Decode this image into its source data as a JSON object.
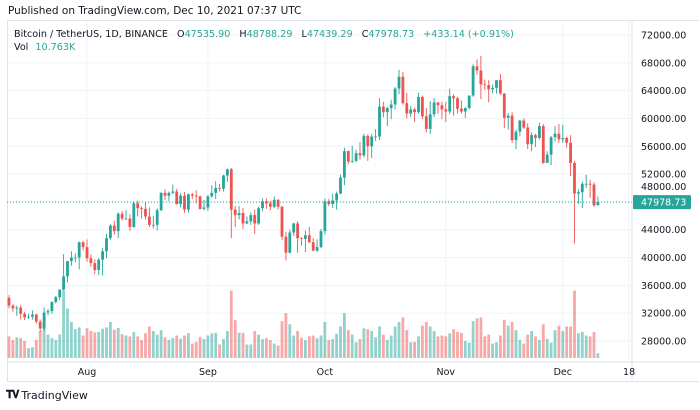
{
  "published": "Published on TradingView.com, Dec 10, 2021 07:37 UTC",
  "legend": {
    "symbol": "Bitcoin / TetherUS, 1D, BINANCE",
    "o_label": "O",
    "o": "47535.90",
    "h_label": "H",
    "h": "48788.29",
    "l_label": "L",
    "l": "47439.29",
    "c_label": "C",
    "c": "47978.73",
    "change": "+433.14 (+0.91%)",
    "vol_label": "Vol",
    "vol": "10.763K"
  },
  "brand": "TradingView",
  "colors": {
    "up": "#26a69a",
    "down": "#ef5350",
    "grid": "#f0f3fa",
    "border": "#e0e3eb",
    "text": "#131722"
  },
  "chart_data": {
    "type": "candlestick",
    "symbol": "Bitcoin / TetherUS",
    "interval": "1D",
    "start_date": "2021-07-12",
    "end_date": "2021-12-10",
    "last_price": "47978.73",
    "ylim": [
      26000,
      74000
    ],
    "y_ticks": [
      "72000.00",
      "68000.00",
      "64000.00",
      "60000.00",
      "56000.00",
      "52000.00",
      "48000.00",
      "44000.00",
      "40000.00",
      "36000.00",
      "32000.00",
      "28000.00"
    ],
    "x_ticks": [
      {
        "label": "Aug",
        "date": "2021-08-01"
      },
      {
        "label": "Sep",
        "date": "2021-09-01"
      },
      {
        "label": "Oct",
        "date": "2021-10-01"
      },
      {
        "label": "Nov",
        "date": "2021-11-01"
      },
      {
        "label": "Dec",
        "date": "2021-12-01"
      },
      {
        "label": "18",
        "date": "2021-12-18"
      }
    ],
    "grid": true,
    "ohlc": [
      [
        34200,
        34600,
        32700,
        33100
      ],
      [
        33100,
        33300,
        32200,
        32700
      ],
      [
        32700,
        33100,
        31600,
        32800
      ],
      [
        32800,
        33200,
        31100,
        31900
      ],
      [
        31900,
        32200,
        31000,
        31400
      ],
      [
        31400,
        31900,
        31200,
        31500
      ],
      [
        31500,
        32400,
        31100,
        31800
      ],
      [
        31800,
        31900,
        30500,
        30800
      ],
      [
        30800,
        31100,
        29300,
        29800
      ],
      [
        29800,
        32800,
        29500,
        32100
      ],
      [
        32100,
        32600,
        31700,
        32300
      ],
      [
        32300,
        33700,
        31900,
        33600
      ],
      [
        33600,
        34500,
        33400,
        34300
      ],
      [
        34300,
        35400,
        33900,
        35400
      ],
      [
        35400,
        40500,
        35300,
        37300
      ],
      [
        37300,
        39500,
        36400,
        39500
      ],
      [
        39500,
        40900,
        38800,
        40000
      ],
      [
        40000,
        40600,
        39300,
        40000
      ],
      [
        40000,
        42300,
        38300,
        42200
      ],
      [
        42200,
        42400,
        41000,
        41500
      ],
      [
        41500,
        42600,
        39400,
        39900
      ],
      [
        39900,
        40500,
        38700,
        39200
      ],
      [
        39200,
        39800,
        37600,
        38200
      ],
      [
        38200,
        39900,
        37500,
        39700
      ],
      [
        39700,
        41400,
        37400,
        40900
      ],
      [
        40900,
        43400,
        39900,
        42800
      ],
      [
        42800,
        44800,
        42500,
        44600
      ],
      [
        44600,
        45300,
        43300,
        43800
      ],
      [
        43800,
        46500,
        42800,
        46300
      ],
      [
        46300,
        46700,
        45300,
        45600
      ],
      [
        45600,
        46800,
        45400,
        45600
      ],
      [
        45600,
        46200,
        43800,
        44400
      ],
      [
        44400,
        48100,
        44300,
        47800
      ],
      [
        47800,
        48200,
        45900,
        47100
      ],
      [
        47100,
        47400,
        45600,
        47000
      ],
      [
        47000,
        48000,
        45500,
        45900
      ],
      [
        45900,
        47200,
        44400,
        44700
      ],
      [
        44700,
        46000,
        44200,
        44700
      ],
      [
        44700,
        47100,
        43900,
        46800
      ],
      [
        46800,
        49400,
        46700,
        49300
      ],
      [
        49300,
        49800,
        48300,
        48900
      ],
      [
        48900,
        49500,
        48100,
        49300
      ],
      [
        49300,
        50500,
        49100,
        49500
      ],
      [
        49500,
        49900,
        47600,
        47700
      ],
      [
        47700,
        49300,
        47200,
        48900
      ],
      [
        48900,
        49400,
        46400,
        46900
      ],
      [
        46900,
        49200,
        46500,
        49100
      ],
      [
        49100,
        49300,
        48400,
        48900
      ],
      [
        48900,
        49700,
        47800,
        48800
      ],
      [
        48800,
        48900,
        46900,
        47000
      ],
      [
        47000,
        48300,
        46800,
        47200
      ],
      [
        47200,
        49000,
        46700,
        48800
      ],
      [
        48800,
        50400,
        48600,
        49300
      ],
      [
        49300,
        51000,
        48400,
        50000
      ],
      [
        50000,
        50600,
        49500,
        49900
      ],
      [
        49900,
        51900,
        49500,
        51800
      ],
      [
        51800,
        52800,
        50900,
        52700
      ],
      [
        52700,
        52900,
        42800,
        46900
      ],
      [
        46900,
        47400,
        44400,
        46100
      ],
      [
        46100,
        47400,
        45500,
        46400
      ],
      [
        46400,
        47100,
        44100,
        44900
      ],
      [
        44900,
        45900,
        44800,
        45200
      ],
      [
        45200,
        46500,
        44700,
        46100
      ],
      [
        46100,
        46900,
        43400,
        44900
      ],
      [
        44900,
        47300,
        44700,
        47100
      ],
      [
        47100,
        48500,
        46700,
        48100
      ],
      [
        48100,
        48500,
        47000,
        47800
      ],
      [
        47800,
        48200,
        46800,
        47300
      ],
      [
        47300,
        48800,
        47100,
        48300
      ],
      [
        48300,
        48400,
        46900,
        47300
      ],
      [
        47300,
        47400,
        42500,
        43000
      ],
      [
        43000,
        43700,
        39600,
        40700
      ],
      [
        40700,
        44000,
        40600,
        43600
      ],
      [
        43600,
        45000,
        43100,
        44900
      ],
      [
        44900,
        45200,
        40700,
        42800
      ],
      [
        42800,
        42900,
        41700,
        42700
      ],
      [
        42700,
        43900,
        40800,
        43200
      ],
      [
        43200,
        44400,
        42100,
        42200
      ],
      [
        42200,
        42800,
        40900,
        41000
      ],
      [
        41000,
        42600,
        40800,
        41500
      ],
      [
        41500,
        44100,
        41400,
        43800
      ],
      [
        43800,
        48500,
        43300,
        48100
      ],
      [
        48100,
        48400,
        47400,
        47700
      ],
      [
        47700,
        49200,
        47100,
        48200
      ],
      [
        48200,
        49500,
        46900,
        49200
      ],
      [
        49200,
        51900,
        49100,
        51500
      ],
      [
        51500,
        55800,
        50400,
        55300
      ],
      [
        55300,
        55400,
        53400,
        53800
      ],
      [
        53800,
        56100,
        53600,
        53900
      ],
      [
        53900,
        55500,
        53700,
        55000
      ],
      [
        55000,
        56600,
        54100,
        54700
      ],
      [
        54700,
        57800,
        54400,
        57500
      ],
      [
        57500,
        57700,
        53900,
        56000
      ],
      [
        56000,
        57800,
        54300,
        57400
      ],
      [
        57400,
        58500,
        56800,
        57400
      ],
      [
        57400,
        62900,
        56900,
        61700
      ],
      [
        61700,
        62400,
        60200,
        60900
      ],
      [
        60900,
        61700,
        58900,
        61500
      ],
      [
        61500,
        62700,
        59900,
        62000
      ],
      [
        62000,
        64500,
        61300,
        64300
      ],
      [
        64300,
        67000,
        63500,
        66000
      ],
      [
        66000,
        66700,
        62000,
        62200
      ],
      [
        62200,
        63700,
        60000,
        60700
      ],
      [
        60700,
        61800,
        60200,
        61300
      ],
      [
        61300,
        61500,
        59500,
        60900
      ],
      [
        60900,
        63700,
        60700,
        63100
      ],
      [
        63100,
        63300,
        59900,
        60300
      ],
      [
        60300,
        61500,
        58000,
        58500
      ],
      [
        58500,
        62500,
        57800,
        60600
      ],
      [
        60600,
        62900,
        60200,
        62300
      ],
      [
        62300,
        62400,
        60700,
        61900
      ],
      [
        61900,
        62400,
        59900,
        61300
      ],
      [
        61300,
        62400,
        59500,
        61000
      ],
      [
        61000,
        64300,
        60600,
        63200
      ],
      [
        63200,
        63500,
        60400,
        62900
      ],
      [
        62900,
        63100,
        60700,
        61400
      ],
      [
        61400,
        62600,
        60700,
        61000
      ],
      [
        61000,
        61600,
        60100,
        61500
      ],
      [
        61500,
        63300,
        61300,
        63300
      ],
      [
        63300,
        67800,
        63100,
        67500
      ],
      [
        67500,
        68500,
        66300,
        66900
      ],
      [
        66900,
        69000,
        62800,
        64900
      ],
      [
        64900,
        65600,
        64100,
        64800
      ],
      [
        64800,
        65500,
        62300,
        64200
      ],
      [
        64200,
        64900,
        63600,
        64400
      ],
      [
        64400,
        65500,
        63600,
        65500
      ],
      [
        65500,
        66400,
        63400,
        63600
      ],
      [
        63600,
        63600,
        58600,
        60100
      ],
      [
        60100,
        60800,
        58400,
        60400
      ],
      [
        60400,
        60900,
        56500,
        56900
      ],
      [
        56900,
        58400,
        55600,
        58100
      ],
      [
        58100,
        59800,
        57400,
        59700
      ],
      [
        59700,
        60000,
        58500,
        58700
      ],
      [
        58700,
        59300,
        55600,
        56300
      ],
      [
        56300,
        58000,
        55300,
        57600
      ],
      [
        57600,
        57800,
        55900,
        57200
      ],
      [
        57200,
        59400,
        57000,
        58900
      ],
      [
        58900,
        59200,
        53500,
        53600
      ],
      [
        53600,
        55300,
        53600,
        54800
      ],
      [
        54800,
        57500,
        53300,
        57300
      ],
      [
        57300,
        58900,
        56700,
        57800
      ],
      [
        57800,
        59200,
        56500,
        57000
      ],
      [
        57000,
        59100,
        56500,
        57200
      ],
      [
        57200,
        57400,
        55800,
        56500
      ],
      [
        56500,
        57600,
        51700,
        53600
      ],
      [
        53600,
        53900,
        42000,
        49200
      ],
      [
        49200,
        49800,
        47700,
        49400
      ],
      [
        49400,
        50900,
        47100,
        50600
      ],
      [
        50600,
        51900,
        50000,
        50600
      ],
      [
        50600,
        51200,
        48600,
        50500
      ],
      [
        50500,
        50800,
        47300,
        47500
      ],
      [
        47535.9,
        48788.29,
        47439.29,
        47978.73
      ]
    ],
    "volume_k": [
      48,
      40,
      46,
      44,
      38,
      22,
      24,
      40,
      60,
      74,
      52,
      44,
      40,
      52,
      150,
      110,
      80,
      64,
      68,
      50,
      66,
      60,
      57,
      58,
      65,
      68,
      80,
      63,
      67,
      53,
      50,
      48,
      58,
      48,
      40,
      55,
      70,
      60,
      52,
      62,
      46,
      40,
      44,
      50,
      43,
      50,
      55,
      32,
      36,
      47,
      42,
      50,
      55,
      56,
      30,
      42,
      60,
      150,
      84,
      56,
      56,
      30,
      30,
      60,
      52,
      42,
      44,
      40,
      32,
      28,
      82,
      100,
      75,
      50,
      60,
      45,
      40,
      48,
      50,
      44,
      50,
      80,
      40,
      42,
      54,
      70,
      100,
      62,
      52,
      35,
      42,
      66,
      64,
      60,
      46,
      70,
      52,
      40,
      50,
      70,
      80,
      90,
      62,
      35,
      36,
      48,
      72,
      80,
      70,
      60,
      48,
      50,
      48,
      55,
      64,
      58,
      56,
      38,
      34,
      82,
      88,
      90,
      48,
      52,
      32,
      35,
      50,
      85,
      72,
      80,
      62,
      40,
      32,
      52,
      60,
      48,
      40,
      75,
      42,
      34,
      62,
      72,
      60,
      70,
      70,
      150,
      55,
      58,
      50,
      48,
      58,
      10.763
    ]
  }
}
